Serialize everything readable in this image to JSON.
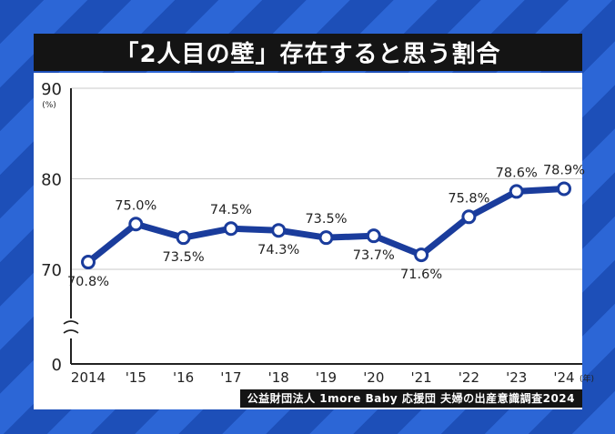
{
  "title": "「2人目の壁」存在すると思う割合",
  "source": "公益財団法人 1more Baby 応援団 夫婦の出産意識調査2024",
  "chart_data": {
    "type": "line",
    "title": "「2人目の壁」存在すると思う割合",
    "categories": [
      "2014",
      "'15",
      "'16",
      "'17",
      "'18",
      "'19",
      "'20",
      "'21",
      "'22",
      "'23",
      "'24"
    ],
    "x_unit": "(年)",
    "y_unit": "(%)",
    "values": [
      70.8,
      75.0,
      73.5,
      74.5,
      74.3,
      73.5,
      73.7,
      71.6,
      75.8,
      78.6,
      78.9
    ],
    "data_labels": [
      "70.8%",
      "75.0%",
      "73.5%",
      "74.5%",
      "74.3%",
      "73.5%",
      "73.7%",
      "71.6%",
      "75.8%",
      "78.6%",
      "78.9%"
    ],
    "y_ticks": [
      "0",
      "70",
      "80",
      "90"
    ],
    "ylim": [
      70,
      90
    ],
    "y_axis_break": true,
    "grid": true,
    "legend": "none",
    "colors": {
      "line": "#1a3c9c",
      "marker_fill": "#ffffff"
    }
  }
}
